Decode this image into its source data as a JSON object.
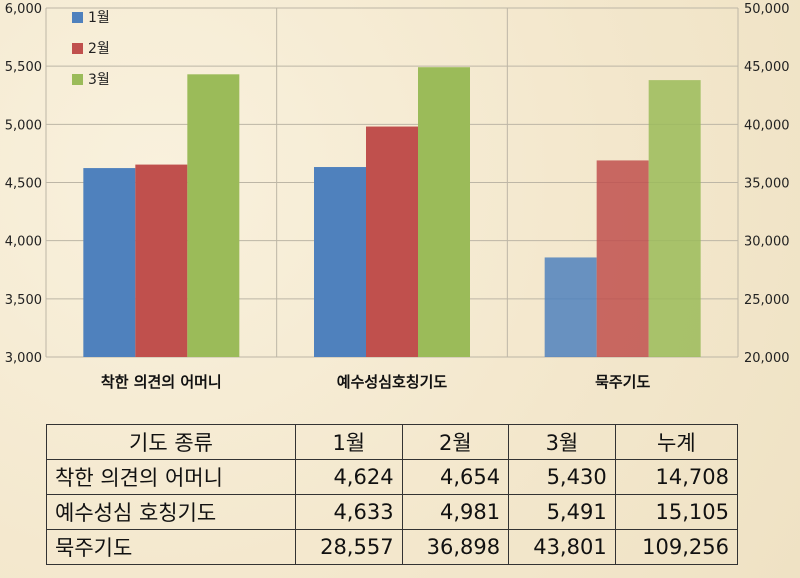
{
  "chart_data": {
    "type": "bar",
    "categories": [
      "착한 의견의 어머니",
      "예수성심호칭기도",
      "묵주기도"
    ],
    "series": [
      {
        "name": "1월",
        "values": [
          4624,
          4633,
          28557
        ],
        "color": "#4f81bd"
      },
      {
        "name": "2월",
        "values": [
          4654,
          4981,
          36898
        ],
        "color": "#c0504d"
      },
      {
        "name": "3월",
        "values": [
          5430,
          5491,
          43801
        ],
        "color": "#9bbb59"
      }
    ],
    "secondary_axis_category_index": 2,
    "ylim_left": [
      3000,
      6000
    ],
    "yticks_left": [
      "3,000",
      "3,500",
      "4,000",
      "4,500",
      "5,000",
      "5,500",
      "6,000"
    ],
    "ylim_right": [
      20000,
      50000
    ],
    "yticks_right": [
      "20,000",
      "25,000",
      "30,000",
      "35,000",
      "40,000",
      "45,000",
      "50,000"
    ],
    "grid": true,
    "legend_position": "top-left"
  },
  "table": {
    "headers": [
      "기도 종류",
      "1월",
      "2월",
      "3월",
      "누계"
    ],
    "rows": [
      [
        "착한 의견의 어머니",
        "4,624",
        "4,654",
        "5,430",
        "14,708"
      ],
      [
        "예수성심 호칭기도",
        "4,633",
        "4,981",
        "5,491",
        "15,105"
      ],
      [
        "묵주기도",
        "28,557",
        "36,898",
        "43,801",
        "109,256"
      ]
    ]
  }
}
